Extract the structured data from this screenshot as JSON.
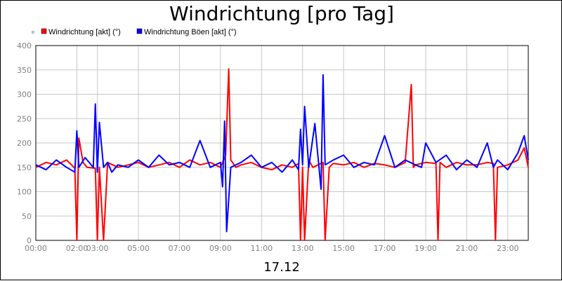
{
  "chart_data": {
    "type": "line",
    "title": "Windrichtung [pro Tag]",
    "xlabel": "17.12",
    "ylabel": "",
    "ylim": [
      0,
      400
    ],
    "xlim": [
      0,
      24
    ],
    "y_ticks": [
      "0",
      "50",
      "100",
      "150",
      "200",
      "250",
      "300",
      "350",
      "400"
    ],
    "x_ticks": [
      "00:00",
      "02:00",
      "03:00",
      "05:00",
      "07:00",
      "09:00",
      "11:00",
      "13:00",
      "15:00",
      "17:00",
      "19:00",
      "21:00",
      "23:00"
    ],
    "grid": true,
    "legend_position": "top-left",
    "series": [
      {
        "name": "Windrichtung [akt] (°)",
        "color": "#ff0000",
        "x": [
          0.0,
          0.5,
          1.0,
          1.5,
          1.9,
          2.0,
          2.1,
          2.3,
          2.5,
          2.9,
          3.0,
          3.1,
          3.3,
          3.5,
          4.0,
          4.5,
          5.0,
          5.5,
          6.0,
          6.5,
          7.0,
          7.5,
          8.0,
          8.5,
          9.0,
          9.25,
          9.4,
          9.5,
          9.75,
          10.0,
          10.5,
          11.0,
          11.5,
          12.0,
          12.5,
          12.8,
          12.9,
          13.0,
          13.1,
          13.3,
          13.5,
          14.0,
          14.1,
          14.3,
          14.5,
          15.0,
          15.5,
          16.0,
          16.5,
          17.0,
          17.5,
          18.0,
          18.3,
          18.4,
          18.5,
          19.0,
          19.5,
          19.6,
          19.7,
          20.0,
          20.5,
          21.0,
          21.5,
          22.0,
          22.3,
          22.4,
          22.5,
          23.0,
          23.5,
          23.8,
          24.0
        ],
        "values": [
          150,
          160,
          155,
          165,
          148,
          0,
          210,
          160,
          150,
          148,
          0,
          150,
          0,
          160,
          150,
          155,
          160,
          150,
          155,
          160,
          150,
          165,
          155,
          160,
          150,
          175,
          352,
          165,
          150,
          155,
          160,
          150,
          145,
          155,
          150,
          158,
          0,
          150,
          0,
          165,
          150,
          160,
          0,
          150,
          158,
          155,
          160,
          150,
          158,
          155,
          150,
          160,
          320,
          150,
          155,
          160,
          158,
          0,
          160,
          150,
          160,
          155,
          155,
          160,
          158,
          0,
          150,
          155,
          165,
          190,
          150
        ]
      },
      {
        "name": "Windrichtung Böen [akt] (°)",
        "color": "#0000ff",
        "x": [
          0.0,
          0.5,
          1.0,
          1.5,
          1.9,
          2.0,
          2.1,
          2.4,
          2.8,
          2.9,
          3.0,
          3.1,
          3.3,
          3.5,
          3.7,
          4.0,
          4.5,
          5.0,
          5.5,
          6.0,
          6.5,
          7.0,
          7.5,
          8.0,
          8.5,
          9.0,
          9.1,
          9.2,
          9.3,
          9.5,
          10.0,
          10.5,
          11.0,
          11.5,
          12.0,
          12.5,
          12.8,
          12.9,
          13.0,
          13.1,
          13.3,
          13.6,
          13.9,
          14.0,
          14.1,
          14.5,
          15.0,
          15.5,
          16.0,
          16.5,
          17.0,
          17.5,
          18.0,
          18.5,
          18.8,
          19.0,
          19.5,
          20.0,
          20.5,
          21.0,
          21.5,
          22.0,
          22.3,
          22.5,
          23.0,
          23.5,
          23.8,
          24.0
        ],
        "values": [
          155,
          145,
          165,
          150,
          140,
          225,
          150,
          170,
          150,
          280,
          140,
          242,
          150,
          160,
          140,
          155,
          150,
          165,
          150,
          175,
          155,
          160,
          150,
          205,
          150,
          160,
          110,
          245,
          18,
          150,
          160,
          175,
          150,
          160,
          140,
          165,
          145,
          228,
          155,
          275,
          150,
          240,
          105,
          340,
          155,
          165,
          175,
          150,
          160,
          155,
          215,
          150,
          165,
          155,
          150,
          200,
          160,
          175,
          145,
          165,
          150,
          200,
          150,
          165,
          145,
          180,
          215,
          165
        ]
      }
    ]
  }
}
